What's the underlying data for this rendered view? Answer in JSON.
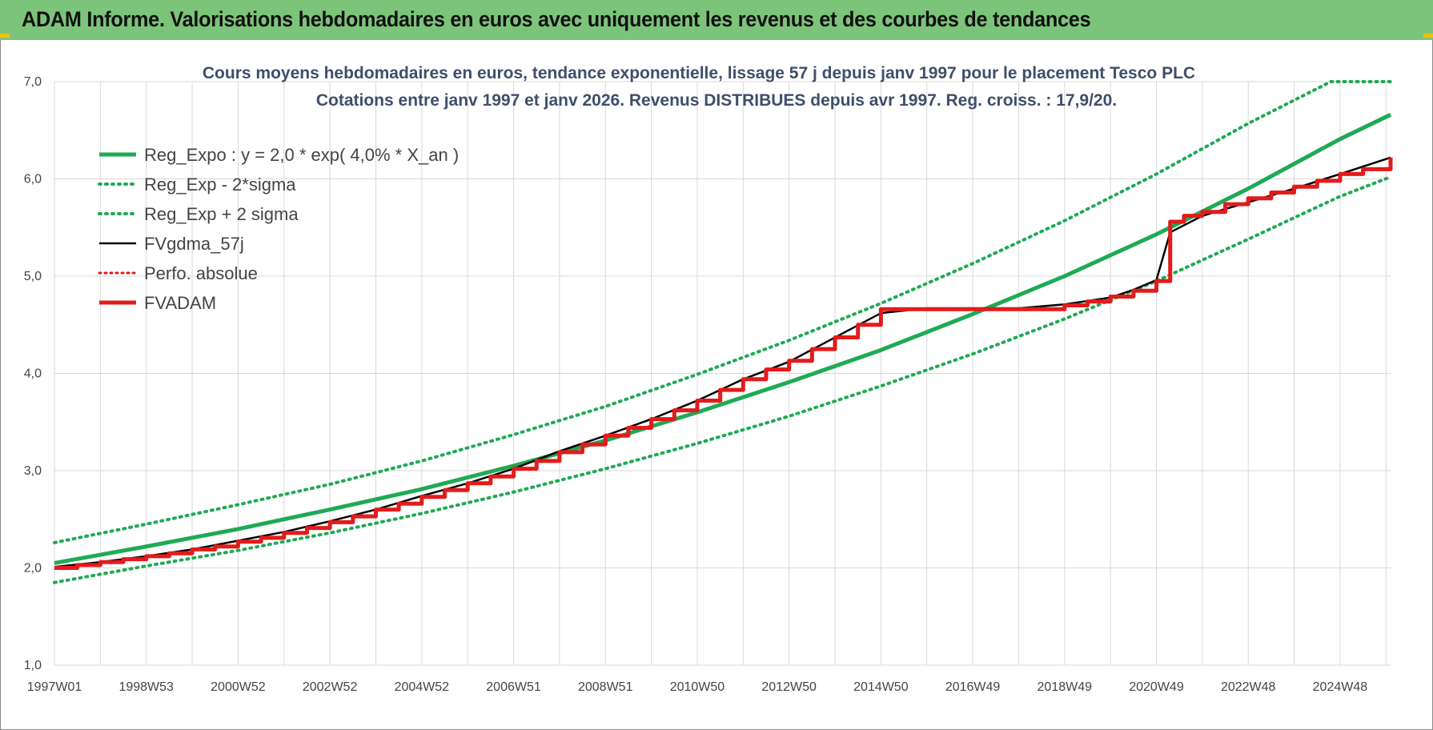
{
  "banner": {
    "title": "ADAM Informe. Valorisations hebdomadaires en euros avec uniquement les revenus et des courbes de tendances"
  },
  "colors": {
    "banner": "#7cc47a",
    "reg_expo": "#1faa55",
    "sigma": "#1faa55",
    "fvgdma": "#000000",
    "perfo": "#e31b1b",
    "fvadam": "#e31b1b",
    "grid": "#d9d9d9"
  },
  "chart_data": {
    "type": "line",
    "title_line1": "Cours moyens hebdomadaires en euros, tendance exponentielle, lissage 57 j depuis janv 1997 pour le placement Tesco PLC",
    "title_line2": "Cotations entre janv 1997 et janv 2026. Revenus DISTRIBUES depuis avr 1997. Reg. croiss. : 17,9/20.",
    "xlabel": "",
    "ylabel": "",
    "xlim": [
      1997.0,
      2026.1
    ],
    "ylim": [
      1.0,
      7.0
    ],
    "y_ticks": [
      "1,0",
      "2,0",
      "3,0",
      "4,0",
      "5,0",
      "6,0",
      "7,0"
    ],
    "x_ticks": [
      {
        "label": "1997W01",
        "x": 1997.0
      },
      {
        "label": "1998W53",
        "x": 1999.0
      },
      {
        "label": "2000W52",
        "x": 2001.0
      },
      {
        "label": "2002W52",
        "x": 2003.0
      },
      {
        "label": "2004W52",
        "x": 2005.0
      },
      {
        "label": "2006W51",
        "x": 2007.0
      },
      {
        "label": "2008W51",
        "x": 2009.0
      },
      {
        "label": "2010W50",
        "x": 2011.0
      },
      {
        "label": "2012W50",
        "x": 2013.0
      },
      {
        "label": "2014W50",
        "x": 2015.0
      },
      {
        "label": "2016W49",
        "x": 2017.0
      },
      {
        "label": "2018W49",
        "x": 2019.0
      },
      {
        "label": "2020W49",
        "x": 2021.0
      },
      {
        "label": "2022W48",
        "x": 2023.0
      },
      {
        "label": "2024W48",
        "x": 2025.0
      }
    ],
    "grid": true,
    "legend_position": "top-left",
    "series": [
      {
        "name": "Reg_Expo : y = 2,0 * exp( 4,0% *  X_an )",
        "style": "solid-thick",
        "x": [
          1997.0,
          1999.0,
          2001.0,
          2003.0,
          2005.0,
          2007.0,
          2009.0,
          2011.0,
          2013.0,
          2015.0,
          2017.0,
          2019.0,
          2021.0,
          2023.0,
          2025.0,
          2026.1
        ],
        "values": [
          2.05,
          2.22,
          2.4,
          2.6,
          2.81,
          3.05,
          3.31,
          3.6,
          3.91,
          4.24,
          4.61,
          5.0,
          5.43,
          5.9,
          6.41,
          6.66
        ]
      },
      {
        "name": "Reg_Exp - 2*sigma",
        "style": "dotted",
        "x": [
          1997.0,
          1999.0,
          2001.0,
          2003.0,
          2005.0,
          2007.0,
          2009.0,
          2011.0,
          2013.0,
          2015.0,
          2017.0,
          2019.0,
          2021.0,
          2023.0,
          2025.0,
          2026.1
        ],
        "values": [
          1.85,
          2.02,
          2.18,
          2.36,
          2.56,
          2.78,
          3.02,
          3.28,
          3.56,
          3.87,
          4.2,
          4.56,
          4.95,
          5.38,
          5.82,
          6.02
        ]
      },
      {
        "name": "Reg_Exp + 2 sigma",
        "style": "dotted",
        "x": [
          1997.0,
          1999.0,
          2001.0,
          2003.0,
          2005.0,
          2007.0,
          2009.0,
          2011.0,
          2013.0,
          2015.0,
          2017.0,
          2019.0,
          2021.0,
          2023.0,
          2024.8,
          2026.1
        ],
        "values": [
          2.26,
          2.45,
          2.65,
          2.86,
          3.1,
          3.37,
          3.66,
          3.99,
          4.34,
          4.72,
          5.13,
          5.57,
          6.05,
          6.57,
          7.0,
          7.0
        ]
      },
      {
        "name": "FVgdma_57j",
        "style": "solid",
        "x": [
          1997.0,
          1998.0,
          1999.0,
          2000.0,
          2001.0,
          2002.0,
          2003.0,
          2004.0,
          2005.0,
          2006.0,
          2007.0,
          2008.0,
          2009.0,
          2010.0,
          2011.0,
          2012.0,
          2013.0,
          2014.0,
          2015.0,
          2016.0,
          2017.0,
          2018.0,
          2019.0,
          2020.0,
          2020.5,
          2021.0,
          2021.3,
          2022.0,
          2023.0,
          2024.0,
          2025.0,
          2026.1
        ],
        "values": [
          2.01,
          2.06,
          2.12,
          2.19,
          2.28,
          2.37,
          2.48,
          2.6,
          2.74,
          2.87,
          3.02,
          3.2,
          3.36,
          3.53,
          3.72,
          3.94,
          4.12,
          4.37,
          4.62,
          4.67,
          4.67,
          4.67,
          4.71,
          4.78,
          4.86,
          4.96,
          5.45,
          5.62,
          5.76,
          5.9,
          6.05,
          6.22
        ]
      },
      {
        "name": "Perfo. absolue",
        "style": "dotted-red",
        "x": [],
        "values": []
      },
      {
        "name": "FVADAM",
        "style": "step-thick",
        "x": [
          1997.0,
          1997.5,
          1998.0,
          1998.5,
          1999.0,
          1999.5,
          2000.0,
          2000.5,
          2001.0,
          2001.5,
          2002.0,
          2002.5,
          2003.0,
          2003.5,
          2004.0,
          2004.5,
          2005.0,
          2005.5,
          2006.0,
          2006.5,
          2007.0,
          2007.5,
          2008.0,
          2008.5,
          2009.0,
          2009.5,
          2010.0,
          2010.5,
          2011.0,
          2011.5,
          2012.0,
          2012.5,
          2013.0,
          2013.5,
          2014.0,
          2014.5,
          2015.0,
          2016.0,
          2017.0,
          2018.0,
          2019.0,
          2019.5,
          2020.0,
          2020.5,
          2021.0,
          2021.3,
          2021.6,
          2022.0,
          2022.5,
          2023.0,
          2023.5,
          2024.0,
          2024.5,
          2025.0,
          2025.5,
          2026.1
        ],
        "values": [
          2.0,
          2.03,
          2.06,
          2.09,
          2.12,
          2.15,
          2.19,
          2.22,
          2.27,
          2.31,
          2.36,
          2.41,
          2.47,
          2.53,
          2.6,
          2.66,
          2.73,
          2.8,
          2.87,
          2.94,
          3.02,
          3.1,
          3.19,
          3.27,
          3.36,
          3.44,
          3.53,
          3.62,
          3.72,
          3.83,
          3.94,
          4.04,
          4.13,
          4.25,
          4.37,
          4.5,
          4.66,
          4.66,
          4.66,
          4.66,
          4.7,
          4.74,
          4.79,
          4.85,
          4.95,
          5.56,
          5.62,
          5.66,
          5.74,
          5.8,
          5.86,
          5.92,
          5.98,
          6.05,
          6.1,
          6.22
        ]
      }
    ]
  }
}
